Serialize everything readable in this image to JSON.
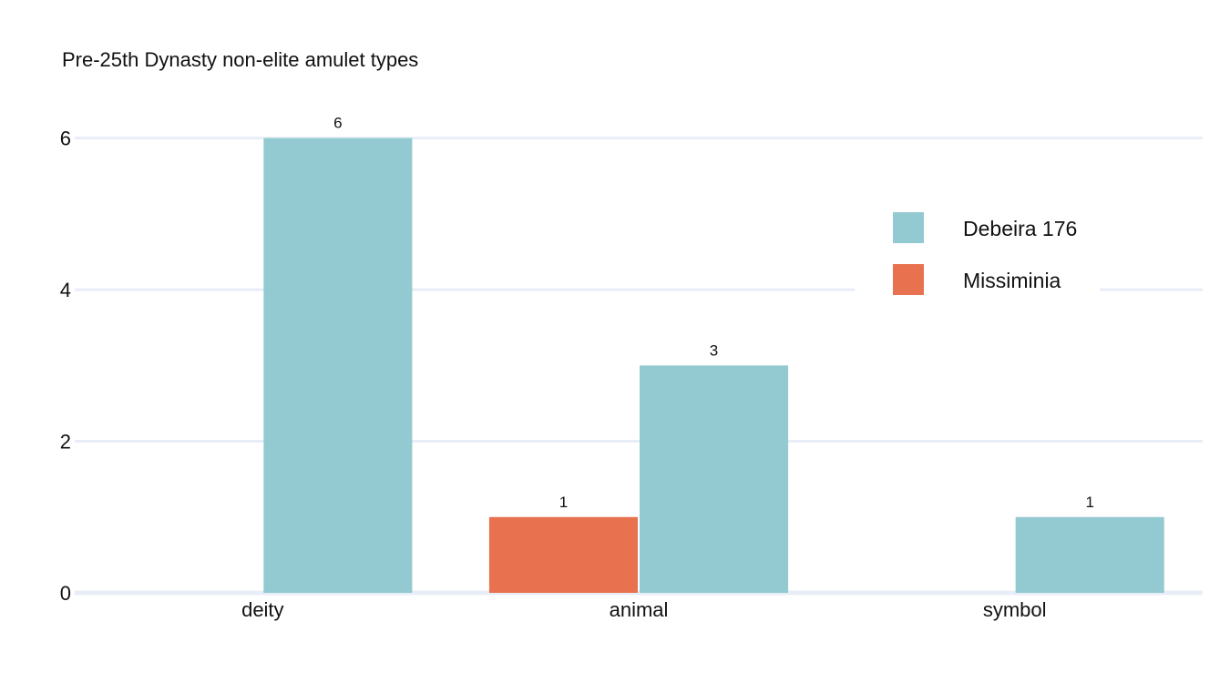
{
  "chart_data": {
    "type": "bar",
    "title": "Pre-25th Dynasty non-elite amulet types",
    "xlabel": "",
    "ylabel": "",
    "categories": [
      "deity",
      "animal",
      "symbol"
    ],
    "series": [
      {
        "name": "Missiminia",
        "color": "#e8724f",
        "values": [
          0,
          1,
          0
        ]
      },
      {
        "name": "Debeira 176",
        "color": "#93c9d0",
        "values": [
          6,
          3,
          1
        ]
      }
    ],
    "ylim": [
      0,
      6.5
    ],
    "yticks": [
      0,
      2,
      4,
      6
    ],
    "grid": true,
    "legend_position": "top-right",
    "legend_order": [
      "Debeira 176",
      "Missiminia"
    ],
    "bar_value_labels": true
  }
}
